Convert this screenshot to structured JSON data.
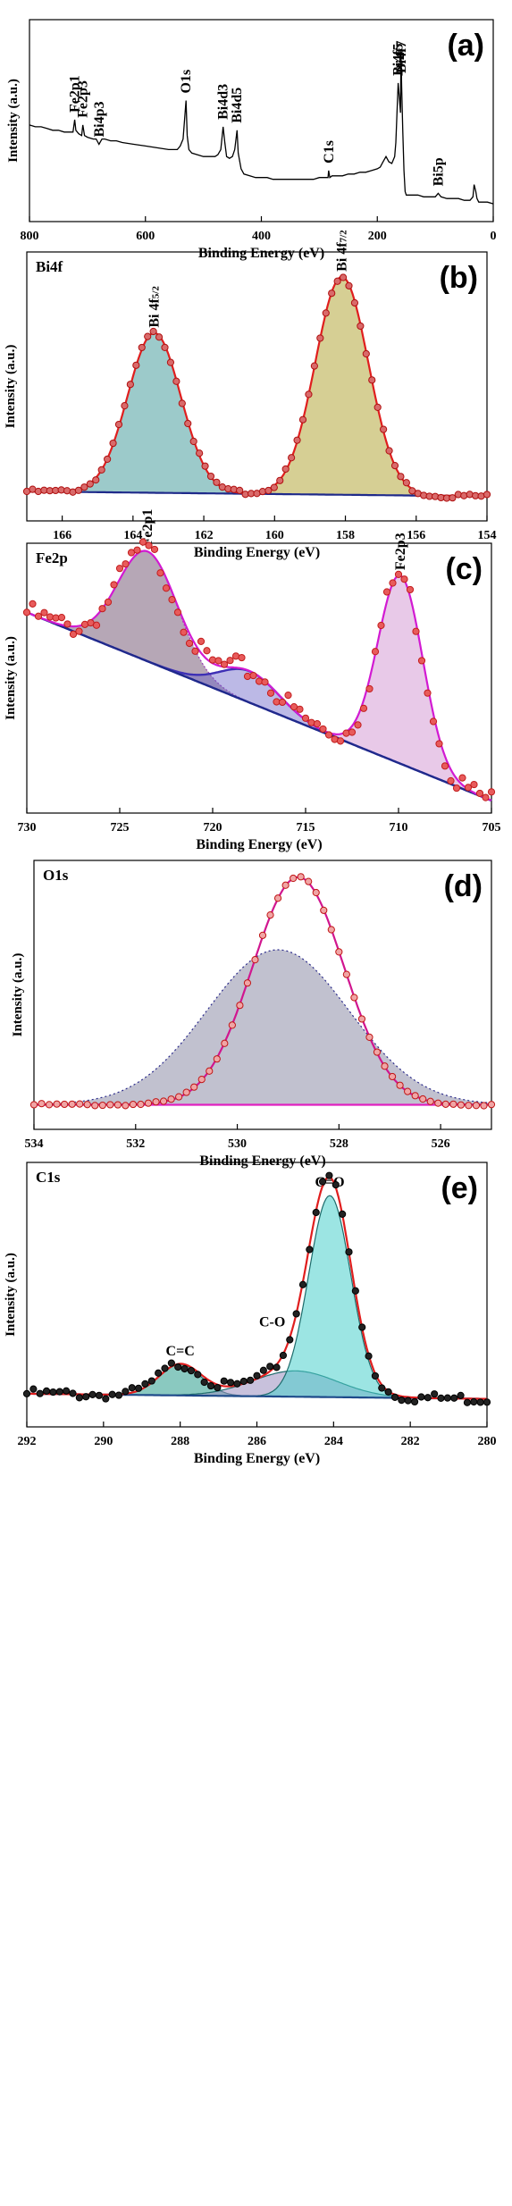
{
  "chart_data": [
    {
      "id": "a",
      "type": "line",
      "panel_label": "(a)",
      "title": "",
      "xlabel": "Binding Energy (eV)",
      "ylabel": "Intensity (a.u.)",
      "xlim": [
        800,
        0
      ],
      "xticks": [
        800,
        600,
        400,
        200,
        0
      ],
      "annotations": [
        {
          "text": "Fe2p1",
          "x": 722
        },
        {
          "text": "Fe2p3",
          "x": 708
        },
        {
          "text": "Bi4p3",
          "x": 680
        },
        {
          "text": "O1s",
          "x": 530
        },
        {
          "text": "Bi4d3",
          "x": 466
        },
        {
          "text": "Bi4d5",
          "x": 442
        },
        {
          "text": "C1s",
          "x": 284
        },
        {
          "text": "Bi4f5",
          "x": 164
        },
        {
          "text": "Bi4f7",
          "x": 159
        },
        {
          "text": "Bi5p",
          "x": 95
        }
      ],
      "series": [
        {
          "x": [
            800,
            790,
            780,
            770,
            760,
            750,
            740,
            730,
            725,
            722,
            720,
            715,
            710,
            708,
            705,
            700,
            690,
            685,
            680,
            675,
            670,
            660,
            650,
            640,
            620,
            600,
            580,
            560,
            545,
            540,
            535,
            530,
            528,
            525,
            520,
            510,
            500,
            490,
            480,
            475,
            470,
            466,
            463,
            460,
            455,
            450,
            446,
            442,
            440,
            435,
            430,
            420,
            410,
            400,
            390,
            380,
            370,
            360,
            350,
            340,
            330,
            320,
            310,
            300,
            295,
            290,
            285,
            284,
            282,
            278,
            270,
            260,
            250,
            240,
            230,
            220,
            210,
            200,
            195,
            190,
            185,
            180,
            175,
            170,
            168,
            166,
            164,
            162,
            160,
            159,
            158,
            156,
            154,
            152,
            150,
            145,
            140,
            130,
            120,
            110,
            100,
            95,
            90,
            80,
            70,
            60,
            50,
            45,
            40,
            35,
            33,
            30,
            28,
            25,
            20,
            10,
            0
          ],
          "y": [
            0.48,
            0.47,
            0.47,
            0.46,
            0.45,
            0.45,
            0.44,
            0.44,
            0.44,
            0.51,
            0.45,
            0.43,
            0.42,
            0.48,
            0.42,
            0.41,
            0.4,
            0.4,
            0.37,
            0.4,
            0.4,
            0.39,
            0.39,
            0.38,
            0.37,
            0.36,
            0.35,
            0.34,
            0.34,
            0.36,
            0.4,
            0.62,
            0.42,
            0.34,
            0.32,
            0.31,
            0.3,
            0.3,
            0.3,
            0.31,
            0.34,
            0.47,
            0.38,
            0.3,
            0.29,
            0.3,
            0.34,
            0.45,
            0.32,
            0.23,
            0.2,
            0.19,
            0.18,
            0.18,
            0.18,
            0.17,
            0.17,
            0.17,
            0.17,
            0.17,
            0.17,
            0.17,
            0.17,
            0.18,
            0.18,
            0.18,
            0.18,
            0.22,
            0.18,
            0.19,
            0.19,
            0.19,
            0.2,
            0.2,
            0.21,
            0.21,
            0.22,
            0.23,
            0.24,
            0.27,
            0.3,
            0.27,
            0.26,
            0.3,
            0.38,
            0.55,
            0.72,
            0.64,
            0.55,
            0.9,
            0.7,
            0.44,
            0.22,
            0.1,
            0.08,
            0.08,
            0.08,
            0.08,
            0.07,
            0.07,
            0.07,
            0.09,
            0.07,
            0.06,
            0.06,
            0.06,
            0.05,
            0.05,
            0.05,
            0.07,
            0.14,
            0.1,
            0.06,
            0.04,
            0.04,
            0.04,
            0.03
          ]
        }
      ]
    },
    {
      "id": "b",
      "type": "line",
      "panel_label": "(b)",
      "title": "Bi4f",
      "xlabel": "Binding Energy (eV)",
      "ylabel": "Intensity (a.u.)",
      "xlim": [
        167,
        154
      ],
      "xticks": [
        166,
        164,
        162,
        160,
        158,
        156,
        154
      ],
      "peaks": [
        {
          "label": "Bi 4f5/2",
          "center": 163.4,
          "height": 0.66,
          "sigma": 0.75,
          "color": "#4a9e9e"
        },
        {
          "label": "Bi 4f7/2",
          "center": 158.1,
          "height": 0.9,
          "sigma": 0.75,
          "color": "#b5a83c"
        }
      ],
      "baseline": {
        "start": 0.07,
        "end": 0.05
      }
    },
    {
      "id": "c",
      "type": "line",
      "panel_label": "(c)",
      "title": "Fe2p",
      "xlabel": "Binding Energy (eV)",
      "ylabel": "Intensity (a.u.)",
      "xlim": [
        730,
        705
      ],
      "xticks": [
        730,
        725,
        720,
        715,
        710,
        705
      ],
      "peaks": [
        {
          "label": "Fe2p1",
          "center": 723.5,
          "height": 0.28,
          "sigma": 1.6,
          "color": "#7a5f7a"
        },
        {
          "label": "Fe2p3",
          "center": 709.9,
          "height": 0.48,
          "sigma": 1.2,
          "color": "#d59cd5"
        }
      ],
      "satellite": {
        "center": 718.0,
        "height": 0.08,
        "sigma": 1.6
      },
      "baseline": {
        "start": 0.48,
        "end": 0.0
      }
    },
    {
      "id": "d",
      "type": "line",
      "panel_label": "(d)",
      "title": "O1s",
      "xlabel": "Binding Energy (eV)",
      "ylabel": "Intensity (a.u.)",
      "xlim": [
        534,
        525
      ],
      "xticks": [
        534,
        532,
        530,
        528,
        526
      ],
      "peaks": [
        {
          "label": "",
          "center": 529.2,
          "height": 0.64,
          "sigma": 1.4,
          "color": "#8e8ea8"
        }
      ],
      "data_peak": {
        "center": 528.8,
        "height": 0.94,
        "sigma": 0.9
      },
      "baseline": {
        "start": 0.05,
        "end": 0.05
      }
    },
    {
      "id": "e",
      "type": "line",
      "panel_label": "(e)",
      "title": "C1s",
      "xlabel": "Binding Energy (eV)",
      "ylabel": "Intensity (a.u.)",
      "xlim": [
        292,
        280
      ],
      "xticks": [
        292,
        290,
        288,
        286,
        284,
        282,
        280
      ],
      "peaks": [
        {
          "label": "C=C",
          "center": 288.0,
          "height": 0.12,
          "sigma": 0.55,
          "color": "#2a9c8c"
        },
        {
          "label": "C-O",
          "center": 285.0,
          "height": 0.1,
          "sigma": 1.1,
          "color": "#9a8ec0"
        },
        {
          "label": "C=O",
          "center": 284.1,
          "height": 0.78,
          "sigma": 0.55,
          "color": "#4ad0cc"
        }
      ],
      "baseline": {
        "start": 0.08,
        "end": 0.06
      }
    }
  ]
}
